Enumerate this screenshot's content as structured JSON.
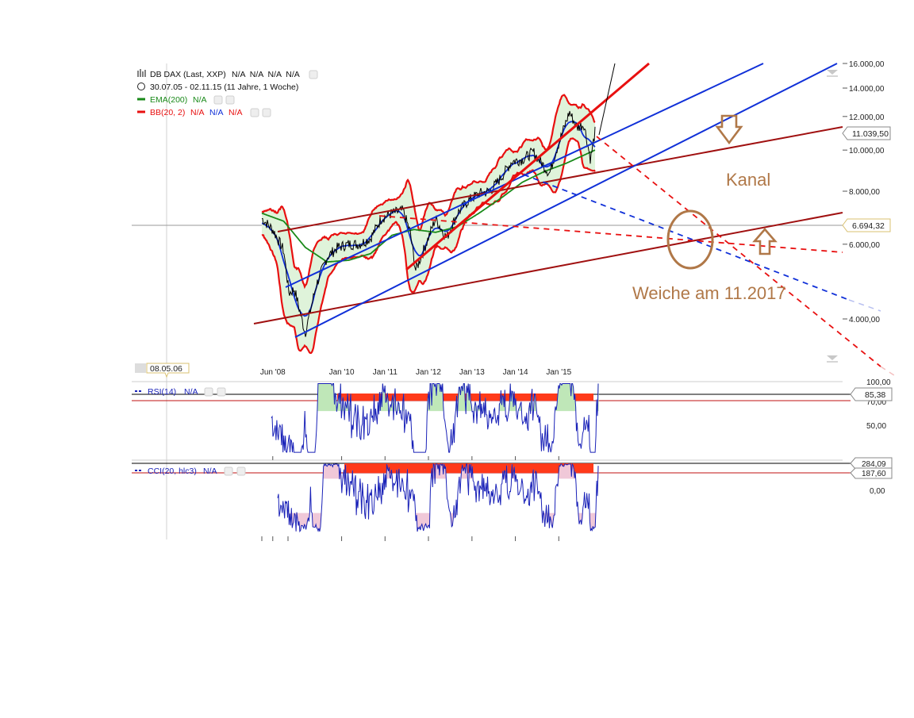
{
  "legend": {
    "instrument": "DB DAX (Last, XXP)",
    "instrument_values": "N/A  N/A  N/A  N/A",
    "period": "30.07.05 - 02.11.15 (11 Jahre, 1 Woche)",
    "ema_label": "EMA(200)",
    "ema_value": "N/A",
    "bb_label": "BB(20, 2)",
    "bb_values": [
      "N/A",
      "N/A",
      "N/A"
    ]
  },
  "crosshair_date": "08.05.06",
  "annotations": {
    "kanal": "Kanal",
    "weiche": "Weiche am 11.2017"
  },
  "rsi": {
    "label": "RSI(14)",
    "value": "N/A",
    "ticks": [
      "100,00",
      "70,00",
      "50,00"
    ],
    "last_badge": "85,38"
  },
  "cci": {
    "label": "CCI(20, hlc3)",
    "value": "N/A",
    "ticks": [
      "284,09",
      "187,60",
      "0,00"
    ]
  },
  "price_badges": {
    "last": "11.039,50",
    "crosshair": "6.694,32"
  },
  "colors": {
    "price": "#000000",
    "ema": "#1a8a1a",
    "bb_upper_lower": "#e81010",
    "bb_mid": "#1030d8",
    "channel": "#a01010",
    "trend_blue": "#1030d8",
    "annotation": "#b07848",
    "overbought": "#ff3a1a"
  },
  "chart_data": {
    "type": "line",
    "y_scale": "log",
    "x_ticks": [
      "Jun '08",
      "Jan '10",
      "Jan '11",
      "Jan '12",
      "Jan '13",
      "Jan '14",
      "Jan '15"
    ],
    "y_ticks": [
      "16.000,00",
      "14.000,00",
      "12.000,00",
      "10.000,00",
      "8.000,00",
      "6.000,00",
      "4.000,00"
    ],
    "ylim": [
      2800,
      16200
    ],
    "series": [
      {
        "name": "DB DAX",
        "points": [
          [
            "2008-03-01",
            6900
          ],
          [
            "2008-06-01",
            6500
          ],
          [
            "2008-09-01",
            5800
          ],
          [
            "2008-10-15",
            4600
          ],
          [
            "2008-12-01",
            4700
          ],
          [
            "2009-03-01",
            3700
          ],
          [
            "2009-06-01",
            4800
          ],
          [
            "2009-09-01",
            5600
          ],
          [
            "2009-12-01",
            5900
          ],
          [
            "2010-03-01",
            6000
          ],
          [
            "2010-06-01",
            6000
          ],
          [
            "2010-09-01",
            6200
          ],
          [
            "2010-12-01",
            6900
          ],
          [
            "2011-03-01",
            7100
          ],
          [
            "2011-06-01",
            7200
          ],
          [
            "2011-08-01",
            6400
          ],
          [
            "2011-09-15",
            5200
          ],
          [
            "2011-12-01",
            5900
          ],
          [
            "2012-03-01",
            6900
          ],
          [
            "2012-06-01",
            6200
          ],
          [
            "2012-09-01",
            7100
          ],
          [
            "2012-12-01",
            7600
          ],
          [
            "2013-03-01",
            7900
          ],
          [
            "2013-06-01",
            8000
          ],
          [
            "2013-09-01",
            8600
          ],
          [
            "2013-12-01",
            9400
          ],
          [
            "2014-03-01",
            9500
          ],
          [
            "2014-06-01",
            9900
          ],
          [
            "2014-10-15",
            8800
          ],
          [
            "2014-12-01",
            9800
          ],
          [
            "2015-02-01",
            11000
          ],
          [
            "2015-04-01",
            12300
          ],
          [
            "2015-06-01",
            11300
          ],
          [
            "2015-08-01",
            11500
          ],
          [
            "2015-09-25",
            9500
          ],
          [
            "2015-11-02",
            11039
          ]
        ]
      },
      {
        "name": "EMA(200)",
        "points": [
          [
            "2008-03-01",
            7100
          ],
          [
            "2008-09-01",
            6800
          ],
          [
            "2009-03-01",
            5900
          ],
          [
            "2009-09-01",
            5450
          ],
          [
            "2010-03-01",
            5500
          ],
          [
            "2010-09-01",
            5700
          ],
          [
            "2011-03-01",
            6300
          ],
          [
            "2011-09-01",
            6500
          ],
          [
            "2012-03-01",
            6400
          ],
          [
            "2012-09-01",
            6600
          ],
          [
            "2013-03-01",
            7100
          ],
          [
            "2013-09-01",
            7700
          ],
          [
            "2014-03-01",
            8400
          ],
          [
            "2014-09-01",
            8900
          ],
          [
            "2015-03-01",
            9300
          ],
          [
            "2015-11-02",
            10000
          ]
        ]
      }
    ],
    "rsi_ylim": [
      20,
      100
    ],
    "cci_ylim": [
      -300,
      300
    ]
  }
}
